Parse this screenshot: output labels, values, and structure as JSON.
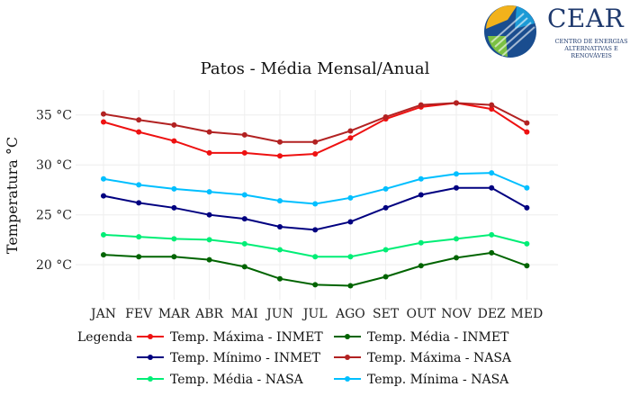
{
  "logo": {
    "name": "CEAR",
    "subtitle_line1": "CENTRO DE ENERGIAS",
    "subtitle_line2": "ALTERNATIVAS E RENOVÁVEIS"
  },
  "chart_data": {
    "type": "line",
    "title": "Patos - Média Mensal/Anual",
    "xlabel": "",
    "ylabel": "Temperatura °C",
    "categories": [
      "JAN",
      "FEV",
      "MAR",
      "ABR",
      "MAI",
      "JUN",
      "JUL",
      "AGO",
      "SET",
      "OUT",
      "NOV",
      "DEZ",
      "MED"
    ],
    "yticks": [
      20,
      25,
      30,
      35
    ],
    "ytick_labels": [
      "20 °C",
      "25 °C",
      "30 °C",
      "35 °C"
    ],
    "ylim": [
      16.5,
      37.5
    ],
    "grid": true,
    "legend_title": "Legenda",
    "legend_position": "bottom",
    "series": [
      {
        "name": "Temp. Máxima - INMET",
        "color": "#ee1111",
        "values": [
          34.3,
          33.3,
          32.4,
          31.2,
          31.2,
          30.9,
          31.1,
          32.7,
          34.6,
          35.8,
          36.2,
          35.6,
          33.3
        ]
      },
      {
        "name": "Temp. Média - INMET",
        "color": "#006400",
        "values": [
          21.0,
          20.8,
          20.8,
          20.5,
          19.8,
          18.6,
          18.0,
          17.9,
          18.8,
          19.9,
          20.7,
          21.2,
          19.9
        ]
      },
      {
        "name": "Temp. Mínimo - INMET",
        "color": "#000080",
        "values": [
          26.9,
          26.2,
          25.7,
          25.0,
          24.6,
          23.8,
          23.5,
          24.3,
          25.7,
          27.0,
          27.7,
          27.7,
          25.7
        ]
      },
      {
        "name": "Temp. Máxima - NASA",
        "color": "#b22222",
        "values": [
          35.1,
          34.5,
          34.0,
          33.3,
          33.0,
          32.3,
          32.3,
          33.4,
          34.8,
          36.0,
          36.2,
          36.0,
          34.2
        ]
      },
      {
        "name": "Temp. Média - NASA",
        "color": "#00ee76",
        "values": [
          23.0,
          22.8,
          22.6,
          22.5,
          22.1,
          21.5,
          20.8,
          20.8,
          21.5,
          22.2,
          22.6,
          23.0,
          22.1
        ]
      },
      {
        "name": "Temp. Mínima - NASA",
        "color": "#00bfff",
        "values": [
          28.6,
          28.0,
          27.6,
          27.3,
          27.0,
          26.4,
          26.1,
          26.7,
          27.6,
          28.6,
          29.1,
          29.2,
          27.7
        ]
      }
    ]
  }
}
